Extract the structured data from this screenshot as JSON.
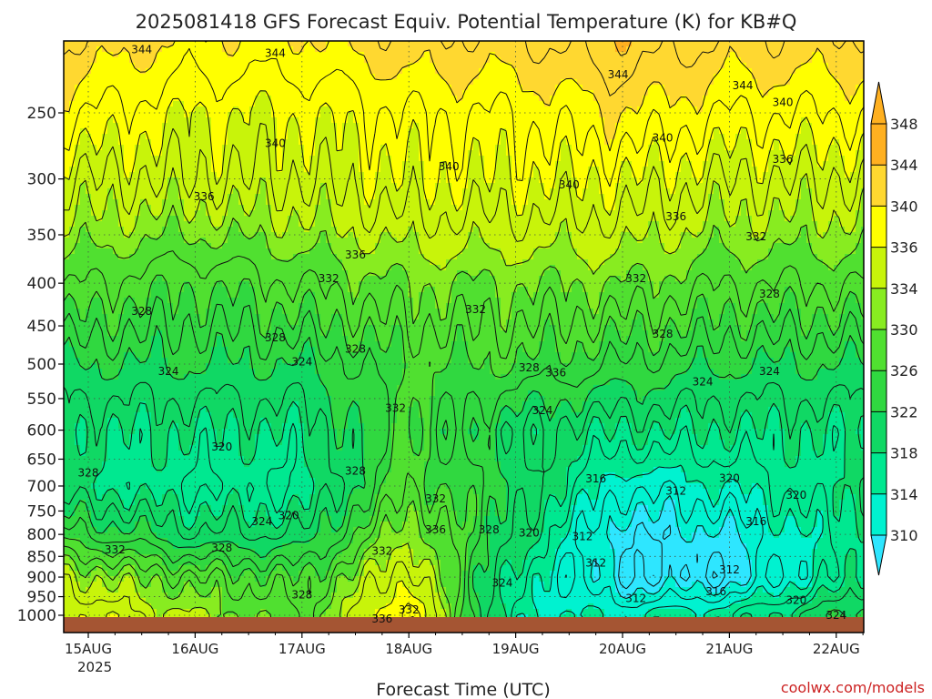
{
  "chart_data": {
    "type": "heatmap",
    "title": "2025081418 GFS Forecast Equiv. Potential Temperature (K) for KB#Q",
    "xlabel": "Forecast Time (UTC)",
    "x_ticks": [
      "15AUG",
      "16AUG",
      "17AUG",
      "18AUG",
      "19AUG",
      "20AUG",
      "21AUG",
      "22AUG"
    ],
    "x_tick_year": "2025",
    "x_range": [
      "2025-08-14T18:00Z",
      "2025-08-22T06:00Z"
    ],
    "ylabel": "",
    "y_scale": "log",
    "y_ticks": [
      250,
      300,
      350,
      400,
      450,
      500,
      550,
      600,
      650,
      700,
      750,
      800,
      850,
      900,
      950,
      1000
    ],
    "y_range": [
      200,
      1050
    ],
    "colorbar": {
      "levels": [
        310,
        314,
        318,
        322,
        326,
        330,
        334,
        336,
        340,
        344,
        348
      ],
      "colors": [
        "#2ee6ff",
        "#00f2d0",
        "#00e890",
        "#10d864",
        "#30d840",
        "#50e030",
        "#88ec20",
        "#c8f40a",
        "#ffff00",
        "#ffd830",
        "#ffb020"
      ]
    },
    "series": [
      {
        "x": "2025-08-15T00:00Z",
        "values_by_pressure": {
          "250": 342,
          "300": 338,
          "400": 332,
          "500": 326,
          "600": 322,
          "700": 322,
          "800": 328,
          "900": 336,
          "1000": 340
        }
      },
      {
        "x": "2025-08-16T00:00Z",
        "values_by_pressure": {
          "250": 340,
          "300": 338,
          "400": 330,
          "500": 326,
          "600": 322,
          "700": 320,
          "800": 324,
          "900": 332,
          "1000": 336
        }
      },
      {
        "x": "2025-08-17T00:00Z",
        "values_by_pressure": {
          "250": 340,
          "300": 338,
          "400": 332,
          "500": 326,
          "600": 322,
          "700": 320,
          "800": 324,
          "900": 330,
          "1000": 332
        }
      },
      {
        "x": "2025-08-18T00:00Z",
        "values_by_pressure": {
          "250": 342,
          "300": 340,
          "400": 334,
          "500": 330,
          "600": 330,
          "700": 332,
          "800": 336,
          "900": 340,
          "1000": 344
        }
      },
      {
        "x": "2025-08-19T00:00Z",
        "values_by_pressure": {
          "250": 342,
          "300": 340,
          "400": 334,
          "500": 330,
          "600": 324,
          "700": 326,
          "800": 324,
          "900": 320,
          "1000": 318
        }
      },
      {
        "x": "2025-08-20T00:00Z",
        "values_by_pressure": {
          "250": 344,
          "300": 340,
          "400": 334,
          "500": 328,
          "600": 322,
          "700": 316,
          "800": 312,
          "900": 312,
          "1000": 318
        }
      },
      {
        "x": "2025-08-21T00:00Z",
        "values_by_pressure": {
          "250": 342,
          "300": 338,
          "400": 332,
          "500": 326,
          "600": 322,
          "700": 318,
          "800": 314,
          "900": 312,
          "1000": 320
        }
      },
      {
        "x": "2025-08-22T00:00Z",
        "values_by_pressure": {
          "250": 342,
          "300": 338,
          "400": 332,
          "500": 326,
          "600": 322,
          "700": 322,
          "800": 320,
          "900": 320,
          "1000": 326
        }
      }
    ],
    "contour_labels": [
      {
        "text": "344",
        "x": "2025-08-15T12:00Z",
        "p": 210
      },
      {
        "text": "344",
        "x": "2025-08-16T18:00Z",
        "p": 212
      },
      {
        "text": "344",
        "x": "2025-08-19T23:00Z",
        "p": 225
      },
      {
        "text": "344",
        "x": "2025-08-21T03:00Z",
        "p": 232
      },
      {
        "text": "340",
        "x": "2025-08-16T18:00Z",
        "p": 272
      },
      {
        "text": "340",
        "x": "2025-08-18T09:00Z",
        "p": 290
      },
      {
        "text": "340",
        "x": "2025-08-19T12:00Z",
        "p": 305
      },
      {
        "text": "340",
        "x": "2025-08-20T09:00Z",
        "p": 268
      },
      {
        "text": "340",
        "x": "2025-08-21T12:00Z",
        "p": 243
      },
      {
        "text": "336",
        "x": "2025-08-16T02:00Z",
        "p": 315
      },
      {
        "text": "336",
        "x": "2025-08-17T12:00Z",
        "p": 370
      },
      {
        "text": "336",
        "x": "2025-08-20T12:00Z",
        "p": 333
      },
      {
        "text": "336",
        "x": "2025-08-21T12:00Z",
        "p": 284
      },
      {
        "text": "336",
        "x": "2025-08-19T09:00Z",
        "p": 512
      },
      {
        "text": "336",
        "x": "2025-08-18T06:00Z",
        "p": 790
      },
      {
        "text": "336",
        "x": "2025-08-17T18:00Z",
        "p": 1010
      },
      {
        "text": "332",
        "x": "2025-08-17T06:00Z",
        "p": 395
      },
      {
        "text": "332",
        "x": "2025-08-18T15:00Z",
        "p": 430
      },
      {
        "text": "332",
        "x": "2025-08-20T03:00Z",
        "p": 395
      },
      {
        "text": "332",
        "x": "2025-08-21T06:00Z",
        "p": 352
      },
      {
        "text": "332",
        "x": "2025-08-17T21:00Z",
        "p": 565
      },
      {
        "text": "332",
        "x": "2025-08-18T06:00Z",
        "p": 725
      },
      {
        "text": "332",
        "x": "2025-08-17T18:00Z",
        "p": 838
      },
      {
        "text": "332",
        "x": "2025-08-15T06:00Z",
        "p": 835
      },
      {
        "text": "332",
        "x": "2025-08-18T00:00Z",
        "p": 985
      },
      {
        "text": "328",
        "x": "2025-08-15T12:00Z",
        "p": 432
      },
      {
        "text": "328",
        "x": "2025-08-16T18:00Z",
        "p": 465
      },
      {
        "text": "328",
        "x": "2025-08-17T12:00Z",
        "p": 480
      },
      {
        "text": "328",
        "x": "2025-08-20T09:00Z",
        "p": 460
      },
      {
        "text": "328",
        "x": "2025-08-21T09:00Z",
        "p": 412
      },
      {
        "text": "328",
        "x": "2025-08-19T03:00Z",
        "p": 505
      },
      {
        "text": "328",
        "x": "2025-08-15T00:00Z",
        "p": 675
      },
      {
        "text": "328",
        "x": "2025-08-17T12:00Z",
        "p": 672
      },
      {
        "text": "328",
        "x": "2025-08-18T18:00Z",
        "p": 790
      },
      {
        "text": "328",
        "x": "2025-08-16T06:00Z",
        "p": 830
      },
      {
        "text": "328",
        "x": "2025-08-17T00:00Z",
        "p": 945
      },
      {
        "text": "324",
        "x": "2025-08-15T18:00Z",
        "p": 510
      },
      {
        "text": "324",
        "x": "2025-08-17T00:00Z",
        "p": 497
      },
      {
        "text": "324",
        "x": "2025-08-19T06:00Z",
        "p": 568
      },
      {
        "text": "324",
        "x": "2025-08-20T18:00Z",
        "p": 525
      },
      {
        "text": "324",
        "x": "2025-08-21T09:00Z",
        "p": 510
      },
      {
        "text": "324",
        "x": "2025-08-16T15:00Z",
        "p": 772
      },
      {
        "text": "324",
        "x": "2025-08-18T21:00Z",
        "p": 915
      },
      {
        "text": "324",
        "x": "2025-08-22T00:00Z",
        "p": 1000
      },
      {
        "text": "320",
        "x": "2025-08-16T06:00Z",
        "p": 628
      },
      {
        "text": "320",
        "x": "2025-08-16T21:00Z",
        "p": 760
      },
      {
        "text": "320",
        "x": "2025-08-19T03:00Z",
        "p": 797
      },
      {
        "text": "320",
        "x": "2025-08-21T00:00Z",
        "p": 685
      },
      {
        "text": "320",
        "x": "2025-08-21T15:00Z",
        "p": 718
      },
      {
        "text": "320",
        "x": "2025-08-21T15:00Z",
        "p": 960
      },
      {
        "text": "316",
        "x": "2025-08-19T18:00Z",
        "p": 686
      },
      {
        "text": "316",
        "x": "2025-08-21T06:00Z",
        "p": 772
      },
      {
        "text": "316",
        "x": "2025-08-20T21:00Z",
        "p": 937
      },
      {
        "text": "312",
        "x": "2025-08-20T12:00Z",
        "p": 710
      },
      {
        "text": "312",
        "x": "2025-08-19T15:00Z",
        "p": 805
      },
      {
        "text": "312",
        "x": "2025-08-19T18:00Z",
        "p": 865
      },
      {
        "text": "312",
        "x": "2025-08-20T03:00Z",
        "p": 955
      },
      {
        "text": "312",
        "x": "2025-08-21T00:00Z",
        "p": 882
      }
    ],
    "grid": true,
    "legend": "right"
  },
  "labels": {
    "title": "2025081418 GFS Forecast Equiv. Potential Temperature (K) for KB#Q",
    "xlabel": "Forecast Time (UTC)",
    "x_tick_year": "2025",
    "watermark": "coolwx.com/models"
  },
  "colors": {
    "ground": "#a55533",
    "axis": "#000000",
    "grid": "#556655",
    "watermark": "#cc2222"
  }
}
